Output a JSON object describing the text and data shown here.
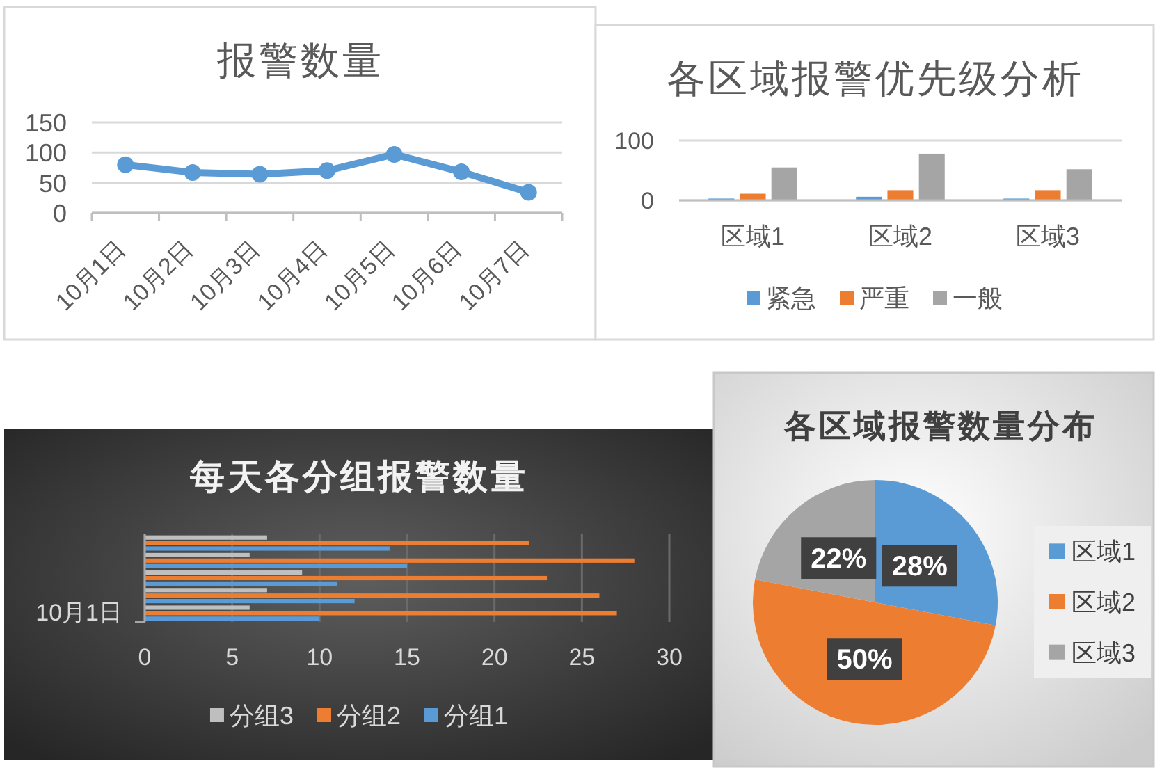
{
  "chart_data": [
    {
      "type": "line",
      "title": "报警数量",
      "categories": [
        "10月1日",
        "10月2日",
        "10月3日",
        "10月4日",
        "10月5日",
        "10月6日",
        "10月7日"
      ],
      "series": [
        {
          "color": "#5b9bd5",
          "values": [
            80,
            67,
            64,
            70,
            97,
            68,
            34
          ]
        }
      ],
      "ylim": [
        0,
        150
      ],
      "yticks": [
        0,
        50,
        100,
        150
      ],
      "grid": "y",
      "marker": "circle",
      "line_style": "solid"
    },
    {
      "type": "bar",
      "title": "各区域报警优先级分析",
      "categories": [
        "区域1",
        "区域2",
        "区域3"
      ],
      "series": [
        {
          "name": "紧急",
          "color": "#5b9bd5",
          "values": [
            3,
            6,
            3
          ]
        },
        {
          "name": "严重",
          "color": "#ed7d31",
          "values": [
            11,
            17,
            17
          ]
        },
        {
          "name": "一般",
          "color": "#a5a5a5",
          "values": [
            55,
            78,
            52
          ]
        }
      ],
      "ylim": [
        0,
        100
      ],
      "yticks": [
        0,
        100
      ],
      "grid": "y",
      "legend": "bottom"
    },
    {
      "type": "bar",
      "orientation": "horizontal",
      "title": "每天各分组报警数量",
      "categories": [
        null,
        null,
        null,
        null,
        "10月1日"
      ],
      "series": [
        {
          "name": "分组3",
          "color": "#bfbfbf",
          "values": [
            7,
            6,
            9,
            7,
            6
          ]
        },
        {
          "name": "分组2",
          "color": "#ed7d31",
          "values": [
            22,
            28,
            23,
            26,
            27
          ]
        },
        {
          "name": "分组1",
          "color": "#5b9bd5",
          "values": [
            14,
            15,
            11,
            12,
            10
          ]
        }
      ],
      "xlim": [
        0,
        30
      ],
      "xticks": [
        0,
        5,
        10,
        15,
        20,
        25,
        30
      ],
      "grid": "x",
      "legend": "bottom"
    },
    {
      "type": "pie",
      "title": "各区域报警数量分布",
      "categories": [
        "区域1",
        "区域2",
        "区域3"
      ],
      "values": [
        28,
        50,
        22
      ],
      "colors": [
        "#5b9bd5",
        "#ed7d31",
        "#a5a5a5"
      ],
      "value_labels": [
        "28%",
        "50%",
        "22%"
      ],
      "legend": "right"
    }
  ]
}
